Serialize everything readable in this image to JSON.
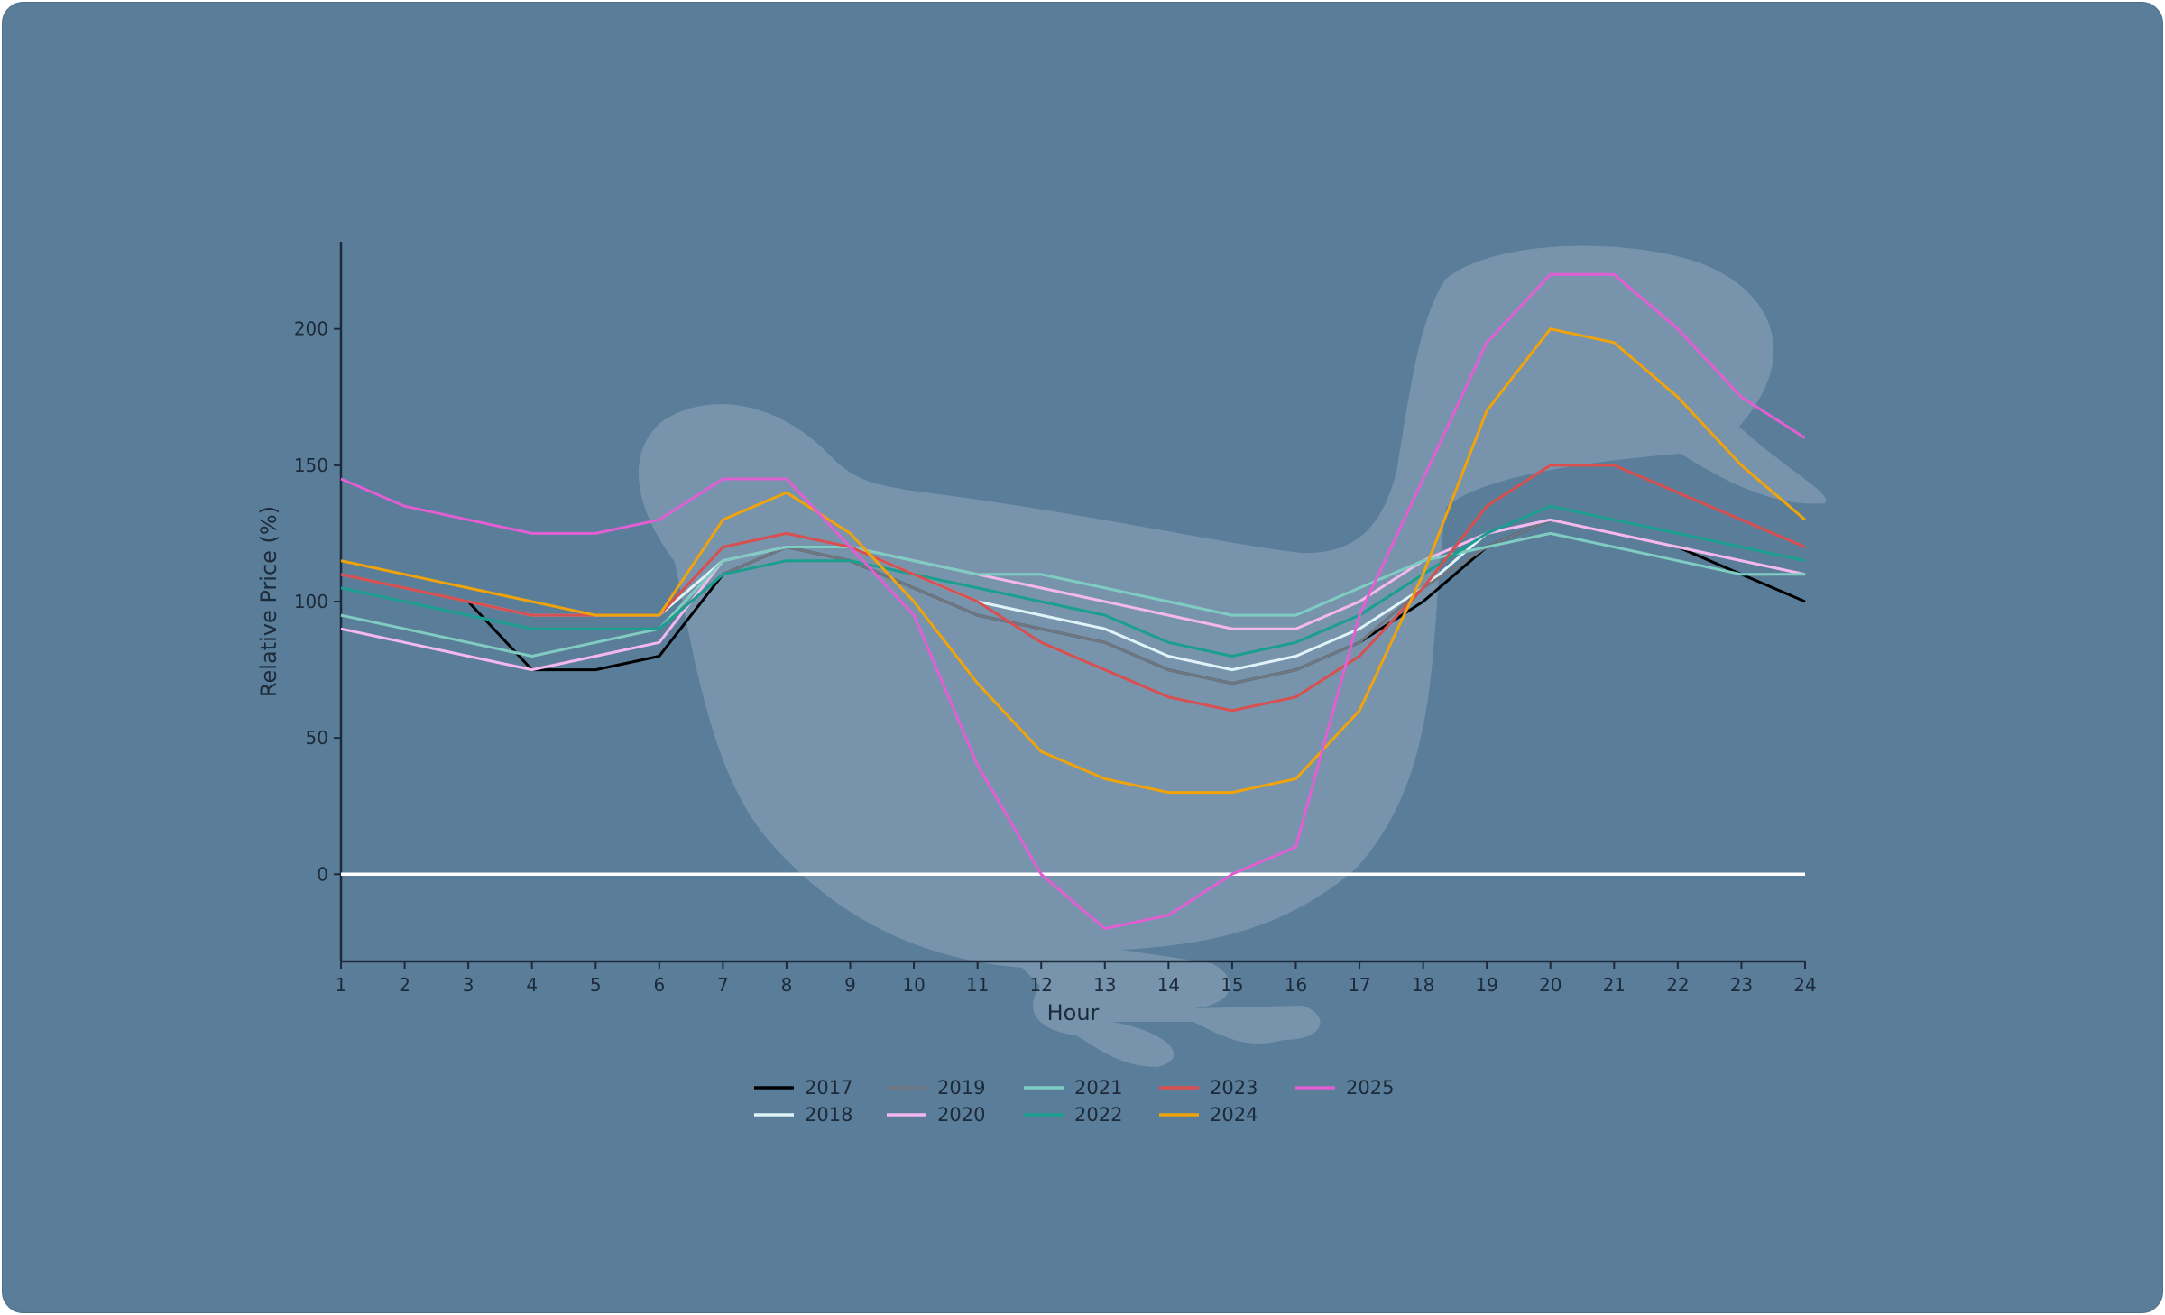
{
  "chart_data": {
    "type": "line",
    "title": "",
    "xlabel": "Hour",
    "ylabel": "Relative Price (%)",
    "x": [
      1,
      2,
      3,
      4,
      5,
      6,
      7,
      8,
      9,
      10,
      11,
      12,
      13,
      14,
      15,
      16,
      17,
      18,
      19,
      20,
      21,
      22,
      23,
      24
    ],
    "xlim": [
      1,
      24
    ],
    "ylim": [
      -32,
      232
    ],
    "yticks": [
      0,
      50,
      100,
      150,
      200
    ],
    "grid": false,
    "legend_position": "bottom-center",
    "legend_columns": 5,
    "zero_line": {
      "value": 0,
      "color": "#ffffff"
    },
    "background": {
      "color": "#5a7d99",
      "watermark": "duck-silhouette"
    },
    "series": [
      {
        "name": "2017",
        "color": "#000000",
        "values": [
          110,
          105,
          100,
          75,
          75,
          80,
          110,
          120,
          115,
          105,
          95,
          90,
          85,
          75,
          70,
          75,
          85,
          100,
          120,
          130,
          125,
          120,
          110,
          100
        ]
      },
      {
        "name": "2018",
        "color": "#e0f3f8",
        "values": [
          110,
          105,
          100,
          95,
          95,
          95,
          115,
          120,
          120,
          110,
          100,
          95,
          90,
          80,
          75,
          80,
          90,
          105,
          125,
          130,
          125,
          120,
          115,
          110
        ]
      },
      {
        "name": "2019",
        "color": "#6f7780",
        "values": [
          95,
          90,
          85,
          80,
          85,
          90,
          110,
          120,
          115,
          105,
          95,
          90,
          85,
          75,
          70,
          75,
          85,
          105,
          120,
          130,
          125,
          120,
          115,
          110
        ]
      },
      {
        "name": "2020",
        "color": "#f5b8ee",
        "values": [
          90,
          85,
          80,
          75,
          80,
          85,
          115,
          120,
          120,
          115,
          110,
          105,
          100,
          95,
          90,
          90,
          100,
          115,
          125,
          130,
          125,
          120,
          115,
          110
        ]
      },
      {
        "name": "2021",
        "color": "#7fcdc2",
        "values": [
          95,
          90,
          85,
          80,
          85,
          90,
          115,
          120,
          120,
          115,
          110,
          110,
          105,
          100,
          95,
          95,
          105,
          115,
          120,
          125,
          120,
          115,
          110,
          110
        ]
      },
      {
        "name": "2022",
        "color": "#1a9e8e",
        "values": [
          105,
          100,
          95,
          90,
          90,
          90,
          110,
          115,
          115,
          110,
          105,
          100,
          95,
          85,
          80,
          85,
          95,
          110,
          125,
          135,
          130,
          125,
          120,
          115
        ]
      },
      {
        "name": "2023",
        "color": "#d94f4f",
        "values": [
          110,
          105,
          100,
          95,
          95,
          95,
          120,
          125,
          120,
          110,
          100,
          85,
          75,
          65,
          60,
          65,
          80,
          105,
          135,
          150,
          150,
          140,
          130,
          120
        ]
      },
      {
        "name": "2024",
        "color": "#f0a30a",
        "values": [
          115,
          110,
          105,
          100,
          95,
          95,
          130,
          140,
          125,
          100,
          70,
          45,
          35,
          30,
          30,
          35,
          60,
          110,
          170,
          200,
          195,
          175,
          150,
          130
        ]
      },
      {
        "name": "2025",
        "color": "#e25fd3",
        "values": [
          145,
          135,
          130,
          125,
          125,
          130,
          145,
          145,
          120,
          95,
          40,
          0,
          -20,
          -15,
          0,
          10,
          95,
          145,
          195,
          220,
          220,
          200,
          175,
          160
        ]
      }
    ]
  }
}
